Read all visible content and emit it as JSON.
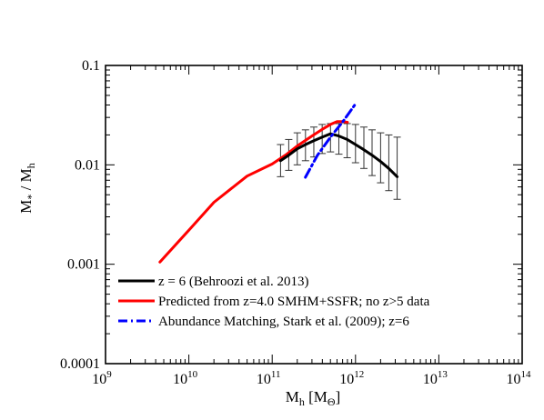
{
  "chart_data": {
    "type": "line",
    "xlabel": "M_h [M_⊙]",
    "ylabel": "M_* / M_h",
    "xscale": "log",
    "yscale": "log",
    "xlim": [
      1000000000.0,
      100000000000000.0
    ],
    "ylim": [
      0.0001,
      0.1
    ],
    "grid": false,
    "legend_position": "bottom-left",
    "xticks": [
      {
        "value": 1000000000.0,
        "base": "10",
        "exp": "9"
      },
      {
        "value": 10000000000.0,
        "base": "10",
        "exp": "10"
      },
      {
        "value": 100000000000.0,
        "base": "10",
        "exp": "11"
      },
      {
        "value": 1000000000000.0,
        "base": "10",
        "exp": "12"
      },
      {
        "value": 10000000000000.0,
        "base": "10",
        "exp": "13"
      },
      {
        "value": 100000000000000.0,
        "base": "10",
        "exp": "14"
      }
    ],
    "yticks": [
      {
        "value": 0.1,
        "label": "0.1"
      },
      {
        "value": 0.01,
        "label": "0.01"
      },
      {
        "value": 0.001,
        "label": "0.001"
      },
      {
        "value": 0.0001,
        "label": "0.0001"
      }
    ],
    "series": [
      {
        "name": "z = 6 (Behroozi et al. 2013)",
        "color": "#000000",
        "style": "solid",
        "points": [
          {
            "x": 126000000000.0,
            "y": 0.011,
            "ylo": 0.0076,
            "yhi": 0.016
          },
          {
            "x": 158000000000.0,
            "y": 0.0125,
            "ylo": 0.0088,
            "yhi": 0.018
          },
          {
            "x": 200000000000.0,
            "y": 0.0145,
            "ylo": 0.01,
            "yhi": 0.021
          },
          {
            "x": 251000000000.0,
            "y": 0.016,
            "ylo": 0.011,
            "yhi": 0.0225
          },
          {
            "x": 316000000000.0,
            "y": 0.0175,
            "ylo": 0.012,
            "yhi": 0.024
          },
          {
            "x": 398000000000.0,
            "y": 0.019,
            "ylo": 0.013,
            "yhi": 0.0255
          },
          {
            "x": 501000000000.0,
            "y": 0.0205,
            "ylo": 0.0135,
            "yhi": 0.026
          },
          {
            "x": 631000000000.0,
            "y": 0.0195,
            "ylo": 0.0128,
            "yhi": 0.026
          },
          {
            "x": 794000000000.0,
            "y": 0.018,
            "ylo": 0.0118,
            "yhi": 0.026
          },
          {
            "x": 1000000000000.0,
            "y": 0.016,
            "ylo": 0.0105,
            "yhi": 0.0255
          },
          {
            "x": 1260000000000.0,
            "y": 0.0142,
            "ylo": 0.0092,
            "yhi": 0.024
          },
          {
            "x": 1580000000000.0,
            "y": 0.0125,
            "ylo": 0.0078,
            "yhi": 0.0225
          },
          {
            "x": 2000000000000.0,
            "y": 0.0108,
            "ylo": 0.0066,
            "yhi": 0.021
          },
          {
            "x": 2510000000000.0,
            "y": 0.0092,
            "ylo": 0.0055,
            "yhi": 0.02
          },
          {
            "x": 3160000000000.0,
            "y": 0.0076,
            "ylo": 0.0045,
            "yhi": 0.019
          }
        ]
      },
      {
        "name": "Predicted from z=4.0 SMHM+SSFR; no z>5 data",
        "color": "#ff0000",
        "style": "solid",
        "points": [
          {
            "x": 4500000000.0,
            "y": 0.00105
          },
          {
            "x": 10000000000.0,
            "y": 0.0022
          },
          {
            "x": 20000000000.0,
            "y": 0.0042
          },
          {
            "x": 50000000000.0,
            "y": 0.0077
          },
          {
            "x": 100000000000.0,
            "y": 0.0102
          },
          {
            "x": 150000000000.0,
            "y": 0.0128
          },
          {
            "x": 200000000000.0,
            "y": 0.0155
          },
          {
            "x": 300000000000.0,
            "y": 0.0195
          },
          {
            "x": 400000000000.0,
            "y": 0.0228
          },
          {
            "x": 500000000000.0,
            "y": 0.0255
          },
          {
            "x": 600000000000.0,
            "y": 0.0272
          },
          {
            "x": 700000000000.0,
            "y": 0.0272
          },
          {
            "x": 800000000000.0,
            "y": 0.0268
          }
        ]
      },
      {
        "name": "Abundance Matching, Stark et al. (2009); z=6",
        "color": "#0000ff",
        "style": "dash-dot",
        "points": [
          {
            "x": 250000000000.0,
            "y": 0.0075
          },
          {
            "x": 350000000000.0,
            "y": 0.0125
          },
          {
            "x": 500000000000.0,
            "y": 0.019
          },
          {
            "x": 700000000000.0,
            "y": 0.027
          },
          {
            "x": 1000000000000.0,
            "y": 0.041
          }
        ]
      }
    ]
  }
}
